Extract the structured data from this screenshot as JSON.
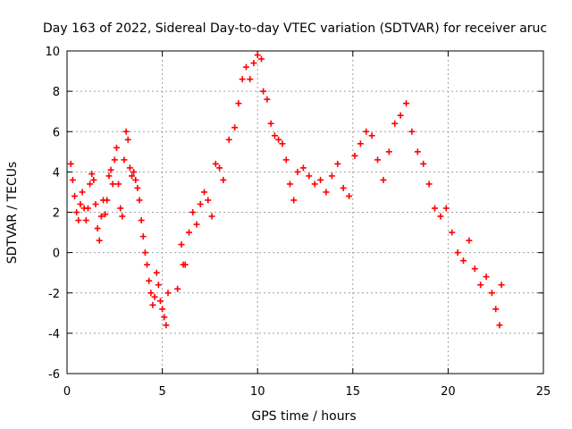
{
  "chart_data": {
    "type": "scatter",
    "title": "Day 163 of 2022, Sidereal Day-to-day VTEC variation (SDTVAR) for receiver aruc",
    "xlabel": "GPS time / hours",
    "ylabel": "SDTVAR / TECUs",
    "xlim": [
      0,
      25
    ],
    "ylim": [
      -6,
      10
    ],
    "xticks": [
      0,
      5,
      10,
      15,
      20,
      25
    ],
    "yticks": [
      -6,
      -4,
      -2,
      0,
      2,
      4,
      6,
      8,
      10
    ],
    "xtick_labels": [
      "0",
      "5",
      "10",
      "15",
      "20",
      "25"
    ],
    "ytick_labels": [
      "-6",
      "-4",
      "-2",
      "0",
      "2",
      "4",
      "6",
      "8",
      "10"
    ],
    "grid": true,
    "marker": "+",
    "color": "#ff0000",
    "series": [
      {
        "name": "SDTVAR",
        "points": [
          [
            0.2,
            4.4
          ],
          [
            0.3,
            3.6
          ],
          [
            0.4,
            2.8
          ],
          [
            0.5,
            2.0
          ],
          [
            0.6,
            1.6
          ],
          [
            0.7,
            2.4
          ],
          [
            0.8,
            3.0
          ],
          [
            0.9,
            2.2
          ],
          [
            1.0,
            1.6
          ],
          [
            1.1,
            2.2
          ],
          [
            1.2,
            3.4
          ],
          [
            1.3,
            3.9
          ],
          [
            1.4,
            3.6
          ],
          [
            1.5,
            2.4
          ],
          [
            1.6,
            1.2
          ],
          [
            1.7,
            0.6
          ],
          [
            1.8,
            1.8
          ],
          [
            1.9,
            2.6
          ],
          [
            2.0,
            1.9
          ],
          [
            2.1,
            2.6
          ],
          [
            2.2,
            3.8
          ],
          [
            2.3,
            4.1
          ],
          [
            2.4,
            3.4
          ],
          [
            2.5,
            4.6
          ],
          [
            2.6,
            5.2
          ],
          [
            2.7,
            3.4
          ],
          [
            2.8,
            2.2
          ],
          [
            2.9,
            1.8
          ],
          [
            3.0,
            4.6
          ],
          [
            3.1,
            6.0
          ],
          [
            3.2,
            5.6
          ],
          [
            3.3,
            4.2
          ],
          [
            3.4,
            3.8
          ],
          [
            3.5,
            4.0
          ],
          [
            3.6,
            3.6
          ],
          [
            3.7,
            3.2
          ],
          [
            3.8,
            2.6
          ],
          [
            3.9,
            1.6
          ],
          [
            4.0,
            0.8
          ],
          [
            4.1,
            0.0
          ],
          [
            4.2,
            -0.6
          ],
          [
            4.3,
            -1.4
          ],
          [
            4.4,
            -2.0
          ],
          [
            4.5,
            -2.6
          ],
          [
            4.6,
            -2.2
          ],
          [
            4.7,
            -1.0
          ],
          [
            4.8,
            -1.6
          ],
          [
            4.9,
            -2.4
          ],
          [
            5.0,
            -2.8
          ],
          [
            5.1,
            -3.2
          ],
          [
            5.2,
            -3.6
          ],
          [
            5.3,
            -2.0
          ],
          [
            5.8,
            -1.8
          ],
          [
            6.0,
            0.4
          ],
          [
            6.1,
            -0.6
          ],
          [
            6.2,
            -0.6
          ],
          [
            6.4,
            1.0
          ],
          [
            6.6,
            2.0
          ],
          [
            6.8,
            1.4
          ],
          [
            7.0,
            2.4
          ],
          [
            7.2,
            3.0
          ],
          [
            7.4,
            2.6
          ],
          [
            7.6,
            1.8
          ],
          [
            7.8,
            4.4
          ],
          [
            8.0,
            4.2
          ],
          [
            8.2,
            3.6
          ],
          [
            8.5,
            5.6
          ],
          [
            8.8,
            6.2
          ],
          [
            9.0,
            7.4
          ],
          [
            9.2,
            8.6
          ],
          [
            9.4,
            9.2
          ],
          [
            9.6,
            8.6
          ],
          [
            9.8,
            9.4
          ],
          [
            10.0,
            9.8
          ],
          [
            10.2,
            9.6
          ],
          [
            10.3,
            8.0
          ],
          [
            10.5,
            7.6
          ],
          [
            10.7,
            6.4
          ],
          [
            10.9,
            5.8
          ],
          [
            11.1,
            5.6
          ],
          [
            11.3,
            5.4
          ],
          [
            11.5,
            4.6
          ],
          [
            11.7,
            3.4
          ],
          [
            11.9,
            2.6
          ],
          [
            12.1,
            4.0
          ],
          [
            12.4,
            4.2
          ],
          [
            12.7,
            3.8
          ],
          [
            13.0,
            3.4
          ],
          [
            13.3,
            3.6
          ],
          [
            13.6,
            3.0
          ],
          [
            13.9,
            3.8
          ],
          [
            14.2,
            4.4
          ],
          [
            14.5,
            3.2
          ],
          [
            14.8,
            2.8
          ],
          [
            15.1,
            4.8
          ],
          [
            15.4,
            5.4
          ],
          [
            15.7,
            6.0
          ],
          [
            16.0,
            5.8
          ],
          [
            16.3,
            4.6
          ],
          [
            16.6,
            3.6
          ],
          [
            16.9,
            5.0
          ],
          [
            17.2,
            6.4
          ],
          [
            17.5,
            6.8
          ],
          [
            17.8,
            7.4
          ],
          [
            18.1,
            6.0
          ],
          [
            18.4,
            5.0
          ],
          [
            18.7,
            4.4
          ],
          [
            19.0,
            3.4
          ],
          [
            19.3,
            2.2
          ],
          [
            19.6,
            1.8
          ],
          [
            19.9,
            2.2
          ],
          [
            20.2,
            1.0
          ],
          [
            20.5,
            0.0
          ],
          [
            20.8,
            -0.4
          ],
          [
            21.1,
            0.6
          ],
          [
            21.4,
            -0.8
          ],
          [
            21.7,
            -1.6
          ],
          [
            22.0,
            -1.2
          ],
          [
            22.3,
            -2.0
          ],
          [
            22.5,
            -2.8
          ],
          [
            22.7,
            -3.6
          ],
          [
            22.8,
            -1.6
          ]
        ]
      }
    ]
  }
}
